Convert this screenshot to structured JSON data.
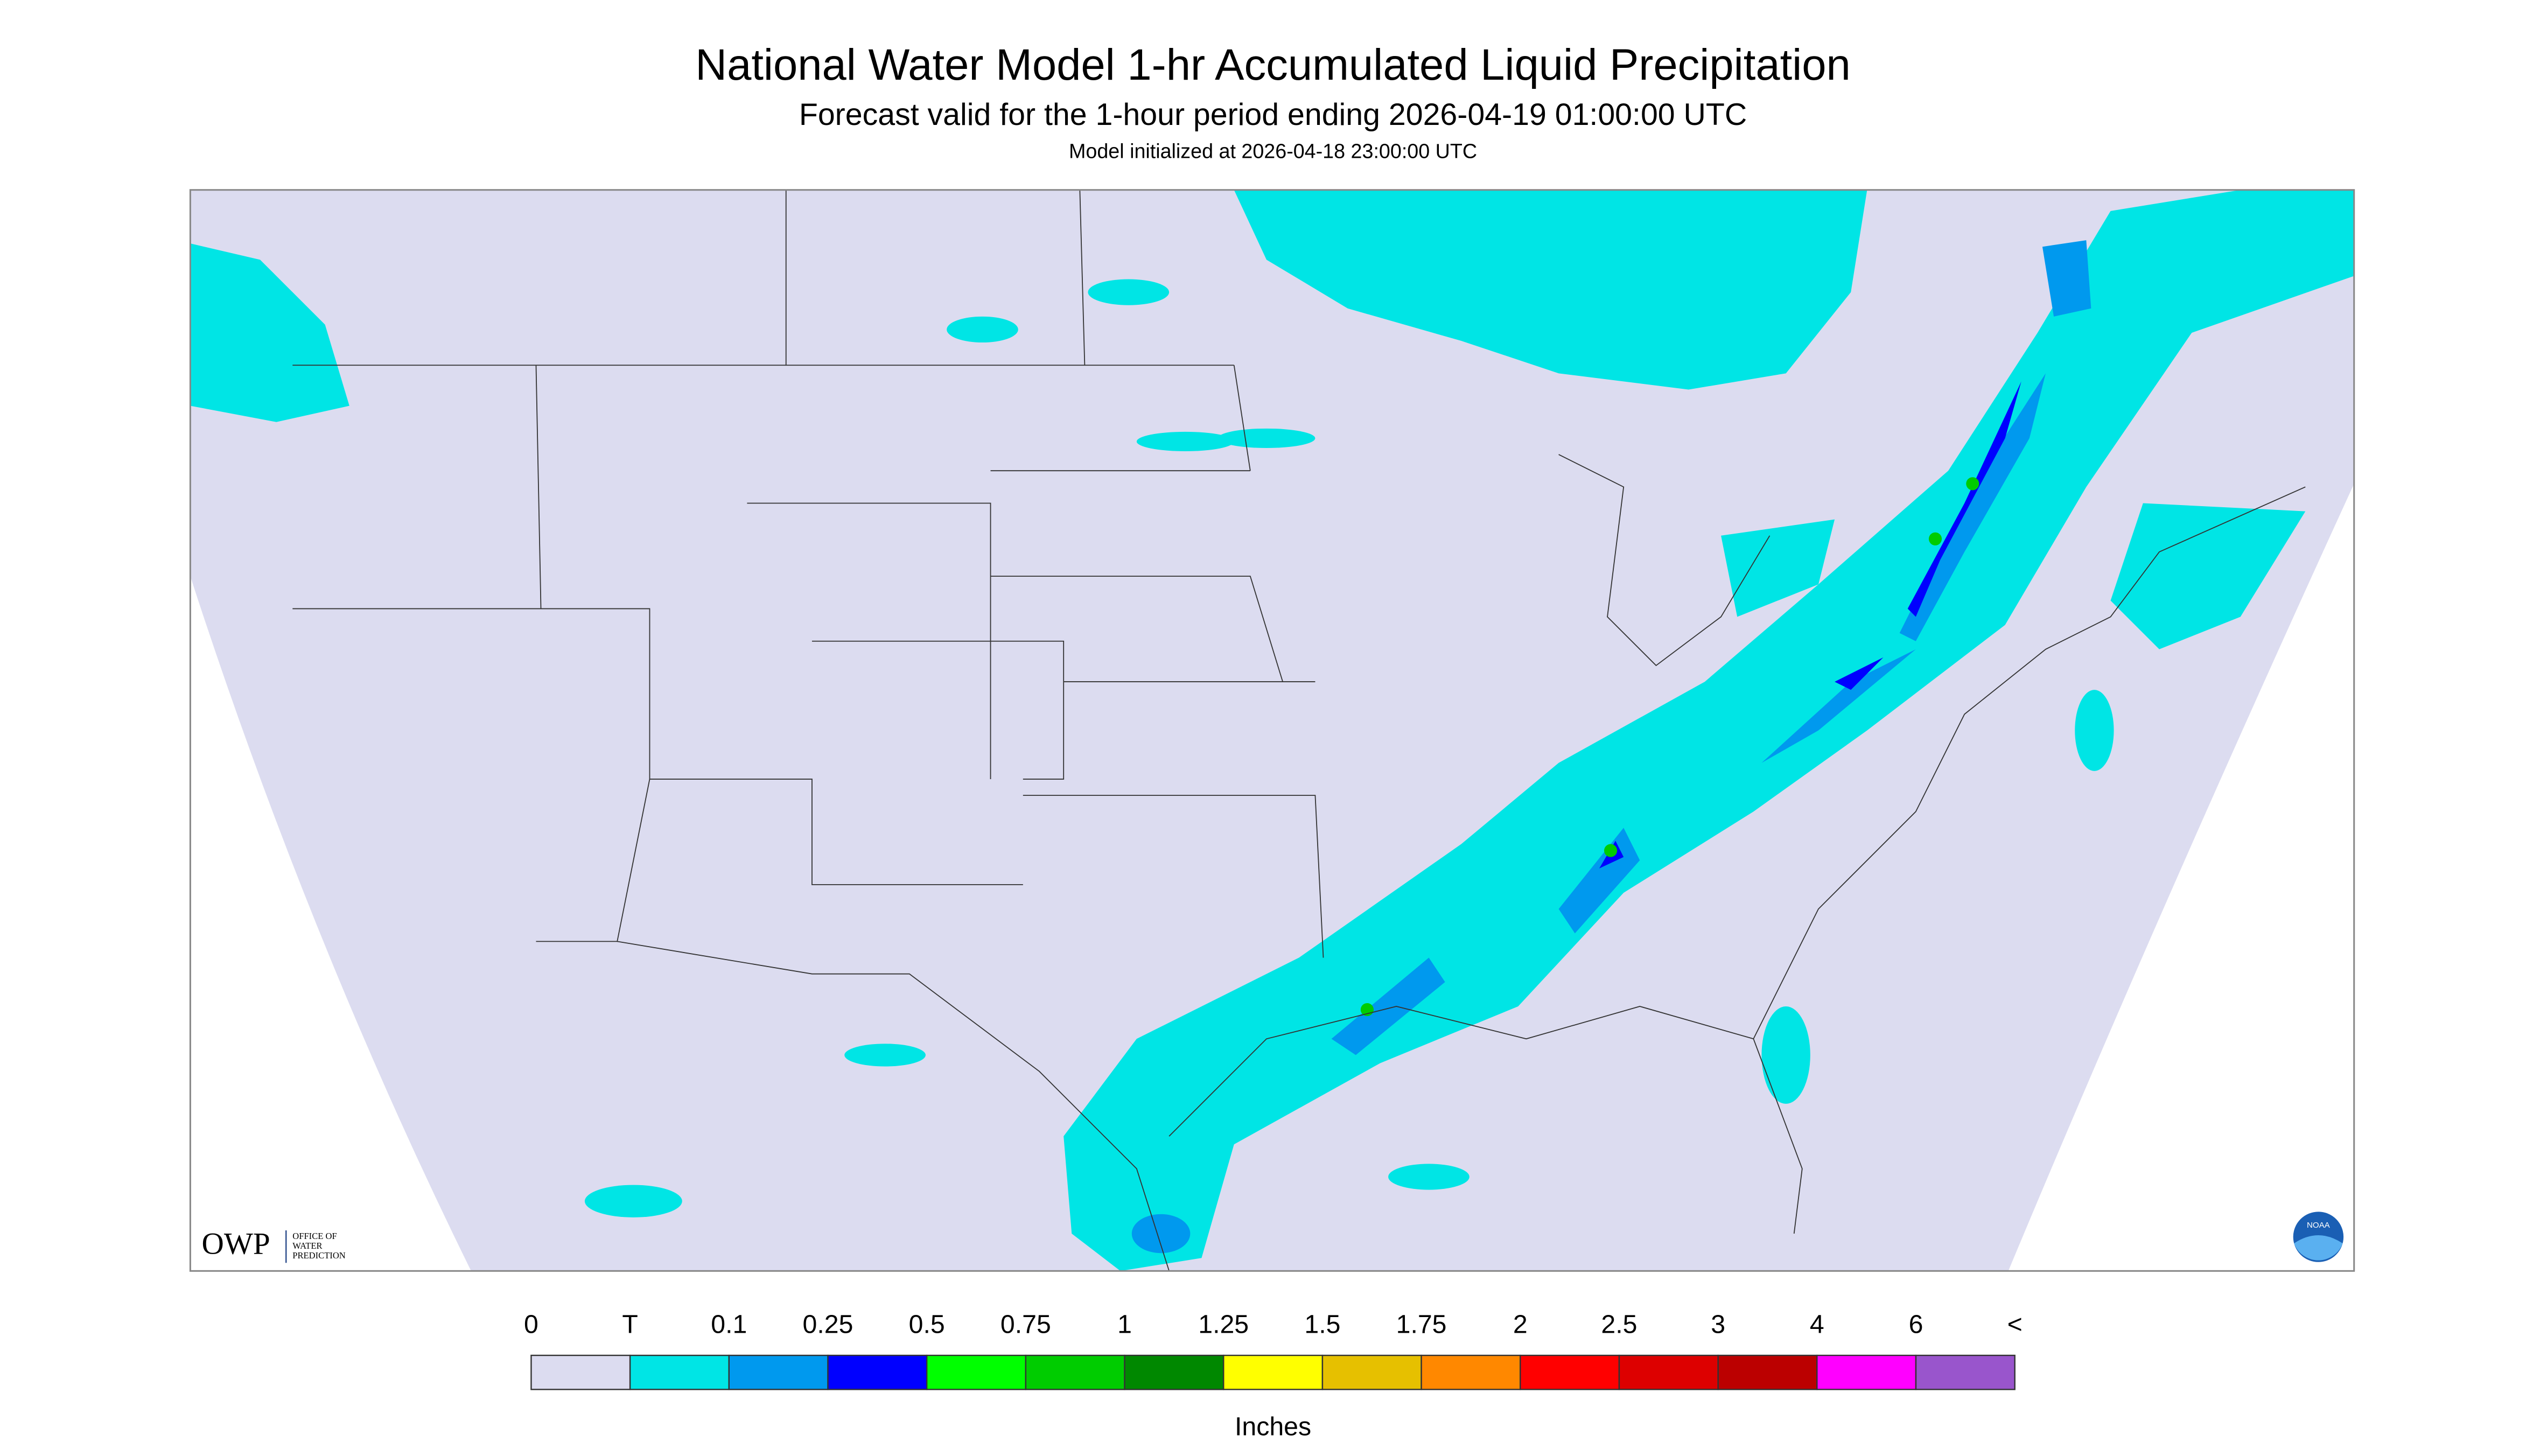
{
  "header": {
    "title": "National Water Model 1-hr Accumulated Liquid Precipitation",
    "subtitle": "Forecast valid for the 1-hour period ending 2026-04-19 01:00:00 UTC",
    "initialized": "Model initialized at 2026-04-18 23:00:00 UTC"
  },
  "legend": {
    "labels": [
      "0",
      "T",
      "0.1",
      "0.25",
      "0.5",
      "0.75",
      "1",
      "1.25",
      "1.5",
      "1.75",
      "2",
      "2.5",
      "3",
      "4",
      "6",
      "<"
    ],
    "colors": [
      "#dcdcf0",
      "#00e5e5",
      "#0099ee",
      "#0000ff",
      "#00ff00",
      "#00cc00",
      "#008800",
      "#ffff00",
      "#e6c000",
      "#ff8800",
      "#ff0000",
      "#dd0000",
      "#bb0000",
      "#ff00ff",
      "#9955cc"
    ],
    "unit": "Inches"
  },
  "logo": {
    "text": "OWP",
    "subtext": [
      "OFFICE OF",
      "WATER",
      "PREDICTION"
    ]
  },
  "badge": "NOAA"
}
